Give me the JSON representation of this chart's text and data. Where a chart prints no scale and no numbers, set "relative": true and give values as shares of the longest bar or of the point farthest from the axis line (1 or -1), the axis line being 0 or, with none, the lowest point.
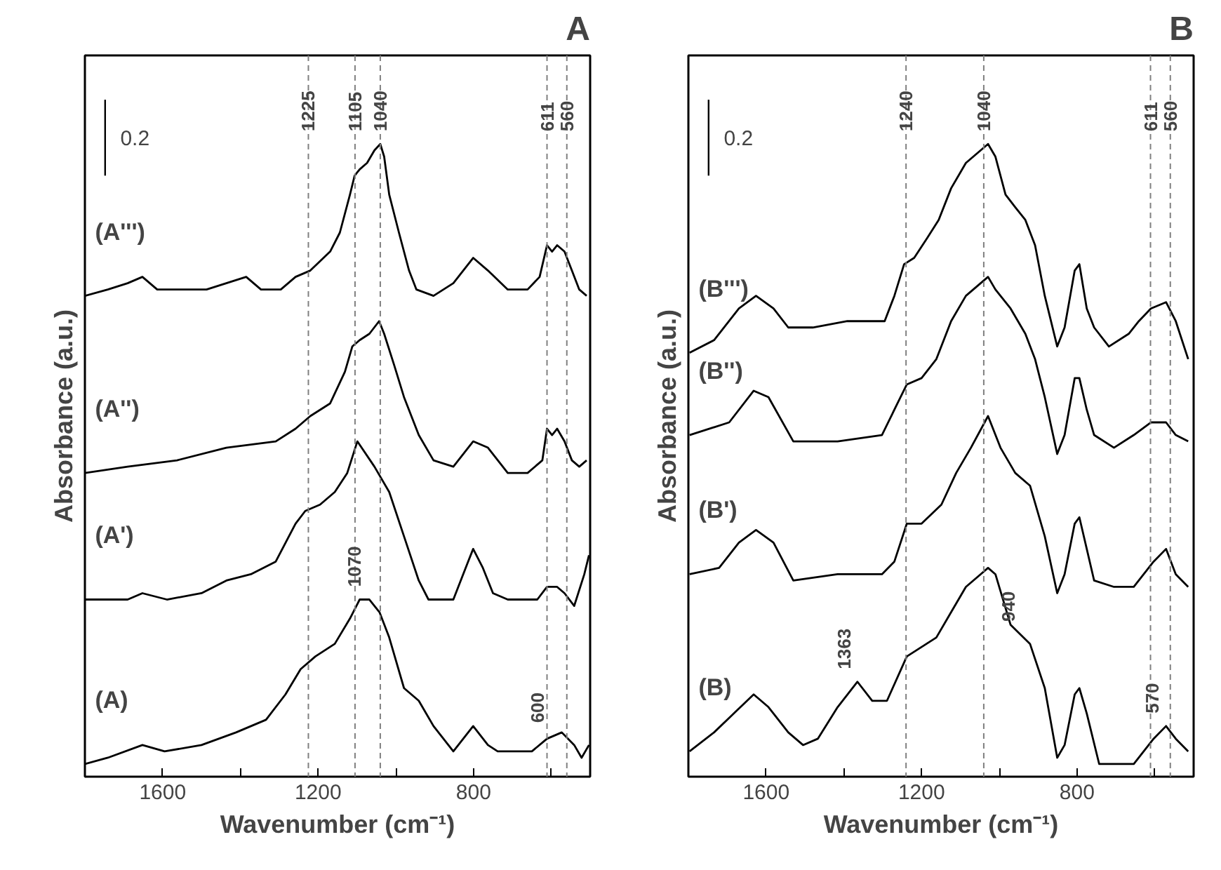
{
  "chart_data": [
    {
      "type": "line",
      "title": "A",
      "xlabel": "Wavenumber (cm⁻¹)",
      "ylabel": "Absorbance (a.u.)",
      "relative": true,
      "xlim": [
        1800,
        500
      ],
      "xticks": [
        1600,
        {
          "value": 1400,
          "label": null
        },
        1200,
        {
          "value": 1000,
          "label": null
        },
        800,
        {
          "value": 600,
          "label": null
        }
      ],
      "grid": false,
      "line_style": "solid",
      "marker": "none",
      "annotations": [
        "0.2",
        {
          "text": "1070",
          "x": 1070,
          "y": 0.28
        },
        {
          "text": "600",
          "x": 600,
          "y": 0.065
        }
      ],
      "ref_lines": [
        {
          "axis": "x",
          "value": 1225,
          "label": "1225",
          "color": "#808080",
          "line_style": "dashed"
        },
        {
          "axis": "x",
          "value": 1105,
          "label": "1105",
          "color": "#808080",
          "line_style": "dashed"
        },
        {
          "axis": "x",
          "value": 1040,
          "label": "1040",
          "color": "#808080",
          "line_style": "dashed"
        },
        {
          "axis": "x",
          "value": 611,
          "label": "611",
          "color": "#808080",
          "line_style": "dashed"
        },
        {
          "axis": "x",
          "value": 560,
          "label": "560",
          "color": "#808080",
          "line_style": "dashed"
        }
      ],
      "series": [
        {
          "name": "(A''')",
          "color": "#000000",
          "x": [
            1800,
            1741,
            1690,
            1652,
            1614,
            1563,
            1487,
            1436,
            1385,
            1347,
            1296,
            1258,
            1220,
            1169,
            1144,
            1118,
            1106,
            1093,
            1074,
            1055,
            1040,
            1030,
            1017,
            992,
            966,
            947,
            903,
            852,
            801,
            763,
            712,
            661,
            630,
            611,
            598,
            585,
            566,
            547,
            528,
            509
          ],
          "values": [
            0.76,
            0.77,
            0.78,
            0.79,
            0.77,
            0.77,
            0.77,
            0.78,
            0.79,
            0.77,
            0.77,
            0.79,
            0.8,
            0.83,
            0.86,
            0.92,
            0.95,
            0.96,
            0.97,
            0.99,
            1.0,
            0.98,
            0.92,
            0.86,
            0.8,
            0.77,
            0.76,
            0.78,
            0.82,
            0.8,
            0.77,
            0.77,
            0.79,
            0.84,
            0.83,
            0.84,
            0.83,
            0.8,
            0.77,
            0.76
          ]
        },
        {
          "name": "(A'')",
          "color": "#000000",
          "x": [
            1800,
            1690,
            1563,
            1436,
            1309,
            1258,
            1220,
            1169,
            1131,
            1112,
            1093,
            1068,
            1043,
            1030,
            1004,
            979,
            941,
            903,
            852,
            801,
            763,
            712,
            661,
            623,
            611,
            598,
            585,
            566,
            547,
            528,
            509
          ],
          "values": [
            0.48,
            0.49,
            0.5,
            0.52,
            0.53,
            0.55,
            0.57,
            0.59,
            0.64,
            0.68,
            0.69,
            0.7,
            0.72,
            0.7,
            0.65,
            0.6,
            0.54,
            0.5,
            0.49,
            0.53,
            0.52,
            0.48,
            0.48,
            0.5,
            0.55,
            0.54,
            0.55,
            0.53,
            0.5,
            0.49,
            0.5
          ]
        },
        {
          "name": "(A')",
          "color": "#000000",
          "x": [
            1800,
            1690,
            1652,
            1589,
            1500,
            1436,
            1373,
            1309,
            1258,
            1233,
            1195,
            1157,
            1125,
            1099,
            1055,
            1017,
            979,
            941,
            916,
            852,
            814,
            801,
            776,
            750,
            712,
            636,
            611,
            585,
            566,
            541,
            515,
            503
          ],
          "values": [
            0.28,
            0.28,
            0.29,
            0.28,
            0.29,
            0.31,
            0.32,
            0.34,
            0.4,
            0.42,
            0.43,
            0.45,
            0.48,
            0.53,
            0.49,
            0.45,
            0.38,
            0.31,
            0.28,
            0.28,
            0.34,
            0.36,
            0.33,
            0.29,
            0.28,
            0.28,
            0.3,
            0.3,
            0.29,
            0.27,
            0.32,
            0.35
          ]
        },
        {
          "name": "(A)",
          "color": "#000000",
          "x": [
            1800,
            1741,
            1652,
            1595,
            1500,
            1411,
            1334,
            1284,
            1245,
            1207,
            1157,
            1118,
            1093,
            1068,
            1042,
            1017,
            979,
            941,
            903,
            852,
            801,
            763,
            738,
            650,
            611,
            573,
            541,
            522,
            503
          ],
          "values": [
            0.02,
            0.03,
            0.05,
            0.04,
            0.05,
            0.07,
            0.09,
            0.13,
            0.17,
            0.19,
            0.21,
            0.25,
            0.28,
            0.28,
            0.26,
            0.22,
            0.14,
            0.12,
            0.08,
            0.04,
            0.08,
            0.05,
            0.04,
            0.04,
            0.06,
            0.07,
            0.05,
            0.03,
            0.05
          ]
        }
      ]
    },
    {
      "type": "line",
      "title": "B",
      "xlabel": "Wavenumber (cm⁻¹)",
      "ylabel": "Absorbance (a.u.)",
      "relative": true,
      "xlim": [
        1800,
        500
      ],
      "xticks": [
        1600,
        {
          "value": 1400,
          "label": null
        },
        1200,
        {
          "value": 1000,
          "label": null
        },
        800,
        {
          "value": 600,
          "label": null
        }
      ],
      "grid": false,
      "line_style": "solid",
      "marker": "none",
      "annotations": [
        "0.2",
        {
          "text": "1363",
          "x": 1363,
          "y": 0.15
        },
        {
          "text": "940",
          "x": 940,
          "y": 0.225
        },
        {
          "text": "570",
          "x": 570,
          "y": 0.08
        }
      ],
      "ref_lines": [
        {
          "axis": "x",
          "value": 1240,
          "label": "1240",
          "color": "#808080",
          "line_style": "dashed"
        },
        {
          "axis": "x",
          "value": 1040,
          "label": "1040",
          "color": "#808080",
          "line_style": "dashed"
        },
        {
          "axis": "x",
          "value": 611,
          "label": "611",
          "color": "#808080",
          "line_style": "dashed"
        },
        {
          "axis": "x",
          "value": 560,
          "label": "560",
          "color": "#808080",
          "line_style": "dashed"
        }
      ],
      "series": [
        {
          "name": "(B''')",
          "color": "#000000",
          "x": [
            1797,
            1734,
            1670,
            1626,
            1581,
            1543,
            1480,
            1391,
            1295,
            1270,
            1245,
            1219,
            1187,
            1156,
            1124,
            1086,
            1048,
            1029,
            1010,
            984,
            959,
            933,
            908,
            883,
            851,
            832,
            806,
            794,
            775,
            756,
            718,
            667,
            641,
            610,
            571,
            546,
            514
          ],
          "values": [
            0.67,
            0.69,
            0.74,
            0.76,
            0.74,
            0.71,
            0.71,
            0.72,
            0.72,
            0.76,
            0.81,
            0.82,
            0.85,
            0.88,
            0.93,
            0.97,
            0.99,
            1.0,
            0.98,
            0.92,
            0.9,
            0.88,
            0.84,
            0.76,
            0.68,
            0.71,
            0.8,
            0.81,
            0.74,
            0.71,
            0.68,
            0.7,
            0.72,
            0.74,
            0.75,
            0.72,
            0.66
          ]
        },
        {
          "name": "(B'')",
          "color": "#000000",
          "x": [
            1797,
            1695,
            1632,
            1594,
            1530,
            1416,
            1302,
            1270,
            1238,
            1200,
            1162,
            1124,
            1086,
            1048,
            1029,
            1010,
            971,
            933,
            908,
            883,
            851,
            832,
            806,
            794,
            775,
            756,
            705,
            654,
            610,
            571,
            546,
            514
          ],
          "values": [
            0.54,
            0.56,
            0.61,
            0.6,
            0.53,
            0.53,
            0.54,
            0.58,
            0.62,
            0.63,
            0.66,
            0.72,
            0.76,
            0.78,
            0.79,
            0.77,
            0.74,
            0.7,
            0.66,
            0.6,
            0.51,
            0.54,
            0.63,
            0.63,
            0.58,
            0.54,
            0.52,
            0.54,
            0.56,
            0.56,
            0.54,
            0.53
          ]
        },
        {
          "name": "(B')",
          "color": "#000000",
          "x": [
            1797,
            1721,
            1670,
            1626,
            1581,
            1530,
            1416,
            1302,
            1270,
            1238,
            1200,
            1149,
            1111,
            1073,
            1029,
            997,
            959,
            921,
            883,
            851,
            832,
            806,
            794,
            775,
            756,
            705,
            654,
            603,
            571,
            546,
            514
          ],
          "values": [
            0.32,
            0.33,
            0.37,
            0.39,
            0.37,
            0.31,
            0.32,
            0.32,
            0.34,
            0.4,
            0.4,
            0.43,
            0.48,
            0.52,
            0.57,
            0.52,
            0.48,
            0.46,
            0.38,
            0.29,
            0.32,
            0.4,
            0.41,
            0.36,
            0.31,
            0.3,
            0.3,
            0.34,
            0.36,
            0.32,
            0.3
          ]
        },
        {
          "name": "(B)",
          "color": "#000000",
          "x": [
            1797,
            1734,
            1683,
            1632,
            1594,
            1543,
            1505,
            1467,
            1416,
            1365,
            1327,
            1289,
            1238,
            1162,
            1124,
            1086,
            1048,
            1029,
            1010,
            971,
            921,
            883,
            851,
            832,
            806,
            794,
            775,
            743,
            654,
            603,
            571,
            546,
            514
          ],
          "values": [
            0.04,
            0.07,
            0.1,
            0.13,
            0.11,
            0.07,
            0.05,
            0.06,
            0.11,
            0.15,
            0.12,
            0.12,
            0.19,
            0.22,
            0.26,
            0.3,
            0.32,
            0.33,
            0.32,
            0.24,
            0.21,
            0.14,
            0.03,
            0.05,
            0.13,
            0.14,
            0.1,
            0.02,
            0.02,
            0.06,
            0.08,
            0.06,
            0.04
          ]
        }
      ]
    }
  ]
}
